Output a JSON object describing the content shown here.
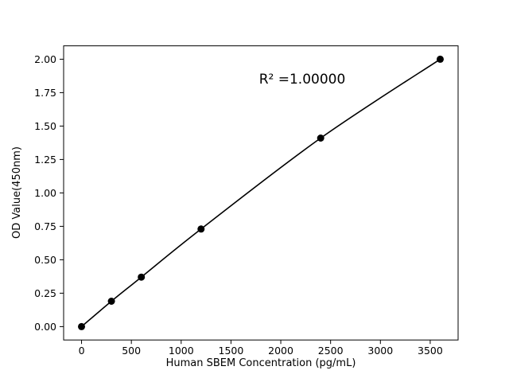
{
  "chart_data": {
    "type": "scatter",
    "x": [
      0,
      300,
      600,
      1200,
      2400,
      3600
    ],
    "y": [
      0.0,
      0.19,
      0.37,
      0.73,
      1.41,
      2.0
    ],
    "title": "",
    "xlabel": "Human SBEM Concentration (pg/mL)",
    "ylabel": "OD Value(450nm)",
    "annotation": "R² =1.00000",
    "xlim": [
      -180,
      3780
    ],
    "ylim": [
      -0.1,
      2.1
    ],
    "xticks": [
      0,
      500,
      1000,
      1500,
      2000,
      2500,
      3000,
      3500
    ],
    "xtick_labels": [
      "0",
      "500",
      "1000",
      "1500",
      "2000",
      "2500",
      "3000",
      "3500"
    ],
    "yticks": [
      0,
      0.25,
      0.5,
      0.75,
      1.0,
      1.25,
      1.5,
      1.75,
      2.0
    ],
    "ytick_labels": [
      "0.00",
      "0.25",
      "0.50",
      "0.75",
      "1.00",
      "1.25",
      "1.50",
      "1.75",
      "2.00"
    ],
    "grid": false,
    "legend": "none",
    "line_color": "#000000",
    "marker_color": "#000000",
    "background": "#ffffff"
  }
}
